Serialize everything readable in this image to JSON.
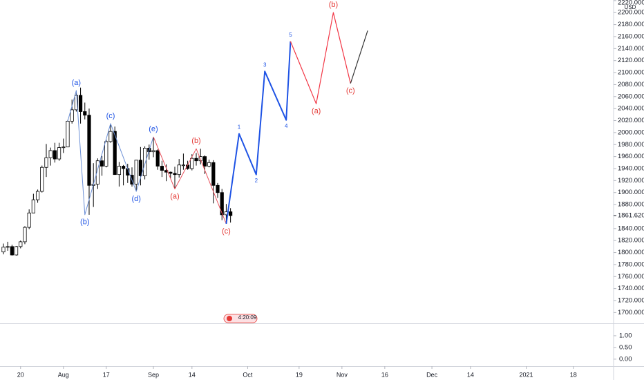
{
  "chart_data": {
    "type": "candlestick",
    "currency": "USD",
    "ylim": [
      1682,
      2221
    ],
    "yticks": [
      {
        "value": 1700,
        "label": "1700.000"
      },
      {
        "value": 1720,
        "label": "1720.000"
      },
      {
        "value": 1740,
        "label": "1740.000"
      },
      {
        "value": 1760,
        "label": "1760.000"
      },
      {
        "value": 1780,
        "label": "1780.000"
      },
      {
        "value": 1800,
        "label": "1800.000"
      },
      {
        "value": 1820,
        "label": "1820.000"
      },
      {
        "value": 1840,
        "label": "1840.000"
      },
      {
        "value": 1880,
        "label": "1880.000"
      },
      {
        "value": 1900,
        "label": "1900.000"
      },
      {
        "value": 1920,
        "label": "1920.000"
      },
      {
        "value": 1940,
        "label": "1940.000"
      },
      {
        "value": 1960,
        "label": "1960.000"
      },
      {
        "value": 1980,
        "label": "1980.000"
      },
      {
        "value": 2000,
        "label": "2000.000"
      },
      {
        "value": 2020,
        "label": "2020.000"
      },
      {
        "value": 2040,
        "label": "2040.000"
      },
      {
        "value": 2060,
        "label": "2060.000"
      },
      {
        "value": 2080,
        "label": "2080.000"
      },
      {
        "value": 2100,
        "label": "2100.000"
      },
      {
        "value": 2120,
        "label": "2120.000"
      },
      {
        "value": 2140,
        "label": "2140.000"
      },
      {
        "value": 2160,
        "label": "2160.000"
      },
      {
        "value": 2180,
        "label": "2180.000"
      },
      {
        "value": 2200,
        "label": "2200.000"
      },
      {
        "value": 2220,
        "label": "2220.000"
      }
    ],
    "last_price_label": "1861.620",
    "xlim": [
      -4.8,
      138.4
    ],
    "xticks": [
      {
        "value": 0,
        "label": "20"
      },
      {
        "value": 10,
        "label": "Aug"
      },
      {
        "value": 20,
        "label": "17"
      },
      {
        "value": 31,
        "label": "Sep"
      },
      {
        "value": 40,
        "label": "14"
      },
      {
        "value": 53,
        "label": "Oct"
      },
      {
        "value": 65,
        "label": "19"
      },
      {
        "value": 75,
        "label": "Nov"
      },
      {
        "value": 85,
        "label": "16"
      },
      {
        "value": 96,
        "label": "Dec"
      },
      {
        "value": 105,
        "label": "14"
      },
      {
        "value": 118,
        "label": "2021"
      },
      {
        "value": 129,
        "label": "18"
      }
    ],
    "x": [
      -4,
      -3,
      -2,
      -1,
      0,
      1,
      2,
      3,
      4,
      5,
      6,
      7,
      8,
      9,
      10,
      11,
      12,
      13,
      14,
      15,
      16,
      17,
      18,
      19,
      20,
      21,
      22,
      23,
      24,
      25,
      26,
      27,
      28,
      29,
      30,
      31,
      32,
      33,
      34,
      35,
      36,
      37,
      38,
      39,
      40,
      41,
      42,
      43,
      44,
      45,
      46,
      47,
      48,
      49
    ],
    "open": [
      1801,
      1809,
      1810,
      1796,
      1810,
      1818,
      1842,
      1866,
      1888,
      1902,
      1942,
      1958,
      1970,
      1956,
      1975,
      1976,
      2019,
      2038,
      2062,
      2035,
      2029,
      1912,
      1914,
      1953,
      1944,
      1985,
      2002,
      1930,
      1944,
      1940,
      1929,
      1914,
      1954,
      1928,
      1974,
      1968,
      1970,
      1944,
      1937,
      1934,
      1932,
      1930,
      1946,
      1946,
      1940,
      1957,
      1953,
      1960,
      1944,
      1950,
      1912,
      1900,
      1863,
      1868
    ],
    "high": [
      1815,
      1818,
      1813,
      1811,
      1820,
      1844,
      1872,
      1898,
      1905,
      1945,
      1981,
      1975,
      1983,
      1983,
      1990,
      2021,
      2055,
      2070,
      2075,
      2050,
      2040,
      1949,
      1957,
      1961,
      1988,
      2015,
      2010,
      1951,
      1946,
      1948,
      1942,
      1953,
      1976,
      1977,
      1980,
      1993,
      1972,
      1953,
      1947,
      1935,
      1943,
      1956,
      1965,
      1953,
      1964,
      1966,
      1973,
      1962,
      1955,
      1954,
      1916,
      1906,
      1881,
      1874
    ],
    "low": [
      1797,
      1803,
      1795,
      1795,
      1807,
      1814,
      1839,
      1866,
      1883,
      1900,
      1926,
      1945,
      1950,
      1953,
      1966,
      1976,
      2015,
      2035,
      2015,
      2022,
      1863,
      1876,
      1906,
      1928,
      1942,
      1983,
      1930,
      1910,
      1912,
      1916,
      1910,
      1902,
      1912,
      1922,
      1955,
      1959,
      1938,
      1926,
      1919,
      1924,
      1906,
      1925,
      1938,
      1938,
      1937,
      1945,
      1947,
      1931,
      1942,
      1882,
      1891,
      1854,
      1848,
      1850
    ],
    "close": [
      1809,
      1810,
      1796,
      1810,
      1818,
      1842,
      1866,
      1888,
      1902,
      1942,
      1958,
      1970,
      1956,
      1975,
      1976,
      2019,
      2038,
      2062,
      2035,
      2029,
      1912,
      1914,
      1953,
      1944,
      1985,
      2002,
      1930,
      1944,
      1940,
      1929,
      1914,
      1954,
      1928,
      1974,
      1968,
      1970,
      1944,
      1937,
      1934,
      1932,
      1930,
      1946,
      1946,
      1940,
      1957,
      1953,
      1960,
      1944,
      1950,
      1912,
      1900,
      1863,
      1868,
      1861.62
    ],
    "up_color": "#ffffff",
    "down_color": "#000000",
    "waves": [
      {
        "color": "#6b8fd6",
        "width": 1,
        "x": [
          11,
          13,
          15,
          21,
          27,
          31
        ],
        "y": [
          2019,
          2070,
          1863,
          2015,
          1902,
          1993
        ],
        "labels": [
          null,
          "(a)",
          "(b)",
          "(c)",
          "(d)",
          "(e)"
        ],
        "label_color": "#1e53e5"
      },
      {
        "color": "#e8505b",
        "width": 1,
        "x": [
          31,
          36,
          41,
          48
        ],
        "y": [
          1993,
          1906,
          1973,
          1848
        ],
        "labels": [
          null,
          "(a)",
          "(b)",
          "(c)"
        ],
        "label_color": "#e53935"
      },
      {
        "color": "#1e53e5",
        "width": 2,
        "x": [
          48,
          51,
          55,
          57,
          62,
          63
        ],
        "y": [
          1848,
          1998,
          1930,
          2102,
          2021,
          2152
        ],
        "labels": [
          null,
          "1",
          "2",
          "3",
          "4",
          "5"
        ],
        "label_color": "#1e53e5"
      },
      {
        "color": "#f23645",
        "width": 1.2,
        "x": [
          63,
          69,
          73,
          77
        ],
        "y": [
          2152,
          2048,
          2200,
          2082
        ],
        "labels": [
          null,
          "(a)",
          "(b)",
          "(c)"
        ],
        "label_color": "#e53935"
      },
      {
        "color": "#333333",
        "width": 1.2,
        "x": [
          77,
          81
        ],
        "y": [
          2082,
          2170
        ],
        "labels": [
          null,
          null
        ],
        "label_color": "#333333"
      }
    ],
    "event_time": "4:20:09",
    "lower_pane": {
      "ylim": [
        -0.3,
        1.5
      ],
      "yticks": [
        {
          "value": 1,
          "label": "1.00"
        },
        {
          "value": 0.5,
          "label": "0.50"
        },
        {
          "value": 0,
          "label": "0.00"
        }
      ]
    }
  }
}
